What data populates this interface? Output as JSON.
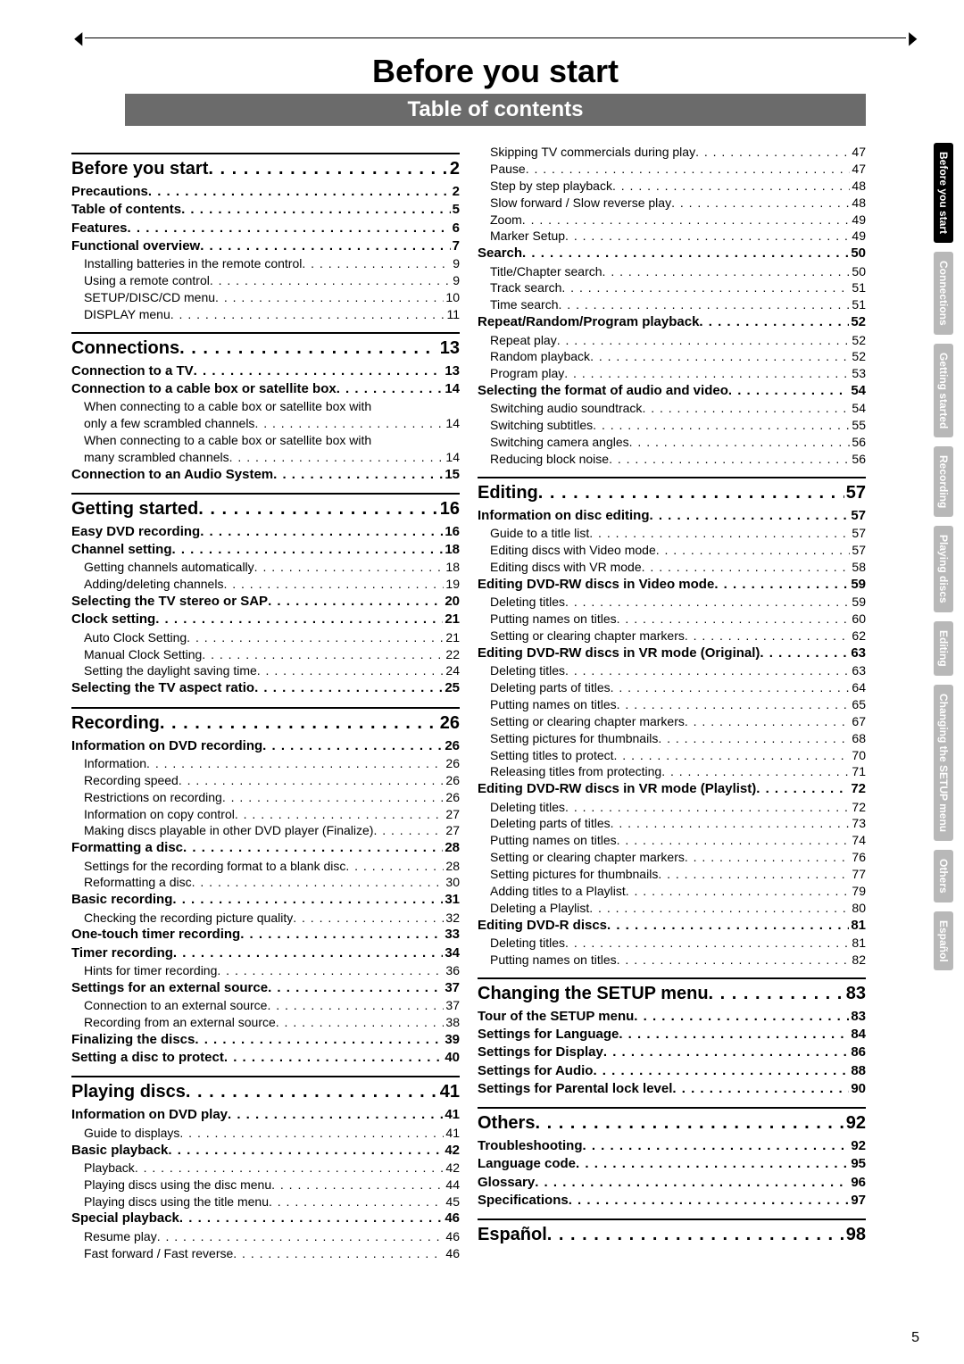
{
  "header": {
    "title": "Before you start",
    "subtitle": "Table of contents"
  },
  "page_number": "5",
  "tabs": [
    {
      "label": "Before you start",
      "active": true
    },
    {
      "label": "Connections",
      "active": false
    },
    {
      "label": "Getting started",
      "active": false
    },
    {
      "label": "Recording",
      "active": false
    },
    {
      "label": "Playing discs",
      "active": false
    },
    {
      "label": "Editing",
      "active": false
    },
    {
      "label": "Changing the SETUP menu",
      "active": false
    },
    {
      "label": "Others",
      "active": false
    },
    {
      "label": "Español",
      "active": false
    }
  ],
  "left": [
    {
      "type": "rule"
    },
    {
      "lvl": 0,
      "t": "Before you start",
      "p": "2"
    },
    {
      "lvl": 1,
      "t": "Precautions",
      "p": "2"
    },
    {
      "lvl": 1,
      "t": "Table of contents",
      "p": "5"
    },
    {
      "lvl": 1,
      "t": "Features",
      "p": "6"
    },
    {
      "lvl": 1,
      "t": "Functional overview",
      "p": "7"
    },
    {
      "lvl": 2,
      "t": "Installing batteries in the remote control",
      "p": "9"
    },
    {
      "lvl": 2,
      "t": "Using a remote control",
      "p": "9"
    },
    {
      "lvl": 2,
      "t": "SETUP/DISC/CD menu",
      "p": "10"
    },
    {
      "lvl": 2,
      "t": "DISPLAY menu",
      "p": "11"
    },
    {
      "type": "rule"
    },
    {
      "lvl": 0,
      "t": "Connections",
      "p": "13"
    },
    {
      "lvl": 1,
      "t": "Connection to a TV",
      "p": "13"
    },
    {
      "lvl": 1,
      "t": "Connection to a cable box or satellite box",
      "p": "14"
    },
    {
      "lvl": 2,
      "t": "When connecting to a cable box or satellite box with",
      "wrap": true
    },
    {
      "lvl": "wrap",
      "t": "only a few scrambled channels",
      "p": "14"
    },
    {
      "lvl": 2,
      "t": "When connecting to a cable box or satellite box with",
      "wrap": true
    },
    {
      "lvl": "wrap",
      "t": "many scrambled channels",
      "p": "14"
    },
    {
      "lvl": 1,
      "t": "Connection to an Audio System",
      "p": "15"
    },
    {
      "type": "rule"
    },
    {
      "lvl": 0,
      "t": "Getting started",
      "p": "16"
    },
    {
      "lvl": 1,
      "t": "Easy DVD recording",
      "p": "16"
    },
    {
      "lvl": 1,
      "t": "Channel setting",
      "p": "18"
    },
    {
      "lvl": 2,
      "t": "Getting channels automatically",
      "p": "18"
    },
    {
      "lvl": 2,
      "t": "Adding/deleting channels",
      "p": "19"
    },
    {
      "lvl": 1,
      "t": "Selecting the TV stereo or SAP",
      "p": "20"
    },
    {
      "lvl": 1,
      "t": "Clock setting",
      "p": "21"
    },
    {
      "lvl": 2,
      "t": "Auto Clock Setting",
      "p": "21"
    },
    {
      "lvl": 2,
      "t": "Manual Clock Setting",
      "p": "22"
    },
    {
      "lvl": 2,
      "t": "Setting the daylight saving time",
      "p": "24"
    },
    {
      "lvl": 1,
      "t": "Selecting the TV aspect ratio",
      "p": "25"
    },
    {
      "type": "rule"
    },
    {
      "lvl": 0,
      "t": "Recording",
      "p": "26"
    },
    {
      "lvl": 1,
      "t": "Information on DVD recording",
      "p": "26"
    },
    {
      "lvl": 2,
      "t": "Information",
      "p": "26"
    },
    {
      "lvl": 2,
      "t": "Recording speed",
      "p": "26"
    },
    {
      "lvl": 2,
      "t": "Restrictions on recording",
      "p": "26"
    },
    {
      "lvl": 2,
      "t": "Information on copy control",
      "p": "27"
    },
    {
      "lvl": 2,
      "t": "Making discs playable in other DVD player (Finalize)",
      "p": "27"
    },
    {
      "lvl": 1,
      "t": "Formatting a disc",
      "p": "28"
    },
    {
      "lvl": 2,
      "t": "Settings for the recording format to a blank disc",
      "p": "28"
    },
    {
      "lvl": 2,
      "t": "Reformatting a disc",
      "p": "30"
    },
    {
      "lvl": 1,
      "t": "Basic recording",
      "p": "31"
    },
    {
      "lvl": 2,
      "t": "Checking the recording picture quality",
      "p": "32"
    },
    {
      "lvl": 1,
      "t": "One-touch timer recording",
      "p": "33"
    },
    {
      "lvl": 1,
      "t": "Timer recording",
      "p": "34"
    },
    {
      "lvl": 2,
      "t": "Hints for timer recording",
      "p": "36"
    },
    {
      "lvl": 1,
      "t": "Settings for an external source",
      "p": "37"
    },
    {
      "lvl": 2,
      "t": "Connection to an external source",
      "p": "37"
    },
    {
      "lvl": 2,
      "t": "Recording from an external source",
      "p": "38"
    },
    {
      "lvl": 1,
      "t": "Finalizing the discs",
      "p": "39"
    },
    {
      "lvl": 1,
      "t": "Setting a disc to protect",
      "p": "40"
    },
    {
      "type": "rule"
    },
    {
      "lvl": 0,
      "t": "Playing discs",
      "p": "41"
    },
    {
      "lvl": 1,
      "t": "Information on DVD play",
      "p": "41"
    },
    {
      "lvl": 2,
      "t": "Guide to displays",
      "p": "41"
    },
    {
      "lvl": 1,
      "t": "Basic playback",
      "p": "42"
    },
    {
      "lvl": 2,
      "t": "Playback",
      "p": "42"
    },
    {
      "lvl": 2,
      "t": "Playing discs using the disc menu",
      "p": "44"
    },
    {
      "lvl": 2,
      "t": "Playing discs using the title menu",
      "p": "45"
    },
    {
      "lvl": 1,
      "t": "Special playback",
      "p": "46"
    },
    {
      "lvl": 2,
      "t": "Resume play",
      "p": "46"
    },
    {
      "lvl": 2,
      "t": "Fast forward / Fast reverse",
      "p": "46"
    }
  ],
  "right": [
    {
      "lvl": 2,
      "t": "Skipping TV commercials during play",
      "p": "47"
    },
    {
      "lvl": 2,
      "t": "Pause",
      "p": "47"
    },
    {
      "lvl": 2,
      "t": "Step by step playback",
      "p": "48"
    },
    {
      "lvl": 2,
      "t": "Slow forward / Slow reverse play",
      "p": "48"
    },
    {
      "lvl": 2,
      "t": "Zoom",
      "p": "49"
    },
    {
      "lvl": 2,
      "t": "Marker Setup",
      "p": "49"
    },
    {
      "lvl": 1,
      "t": "Search",
      "p": "50"
    },
    {
      "lvl": 2,
      "t": "Title/Chapter search",
      "p": "50"
    },
    {
      "lvl": 2,
      "t": "Track search",
      "p": "51"
    },
    {
      "lvl": 2,
      "t": "Time search",
      "p": "51"
    },
    {
      "lvl": 1,
      "t": "Repeat/Random/Program playback",
      "p": "52"
    },
    {
      "lvl": 2,
      "t": "Repeat play",
      "p": "52"
    },
    {
      "lvl": 2,
      "t": "Random playback",
      "p": "52"
    },
    {
      "lvl": 2,
      "t": "Program play",
      "p": "53"
    },
    {
      "lvl": 1,
      "t": "Selecting the format of audio and video",
      "p": "54"
    },
    {
      "lvl": 2,
      "t": "Switching audio soundtrack",
      "p": "54"
    },
    {
      "lvl": 2,
      "t": "Switching subtitles",
      "p": "55"
    },
    {
      "lvl": 2,
      "t": "Switching camera angles",
      "p": "56"
    },
    {
      "lvl": 2,
      "t": "Reducing block noise",
      "p": "56"
    },
    {
      "type": "rule"
    },
    {
      "lvl": 0,
      "t": "Editing",
      "p": "57"
    },
    {
      "lvl": 1,
      "t": "Information on disc editing",
      "p": "57"
    },
    {
      "lvl": 2,
      "t": "Guide to a title list",
      "p": "57"
    },
    {
      "lvl": 2,
      "t": "Editing discs with Video mode",
      "p": "57"
    },
    {
      "lvl": 2,
      "t": "Editing discs with VR mode",
      "p": "58"
    },
    {
      "lvl": 1,
      "t": "Editing DVD-RW discs in Video mode",
      "p": "59"
    },
    {
      "lvl": 2,
      "t": "Deleting titles",
      "p": "59"
    },
    {
      "lvl": 2,
      "t": "Putting names on titles",
      "p": "60"
    },
    {
      "lvl": 2,
      "t": "Setting or clearing chapter markers",
      "p": "62"
    },
    {
      "lvl": 1,
      "t": "Editing DVD-RW discs in VR mode (Original)",
      "p": "63"
    },
    {
      "lvl": 2,
      "t": "Deleting titles",
      "p": "63"
    },
    {
      "lvl": 2,
      "t": "Deleting parts of titles",
      "p": "64"
    },
    {
      "lvl": 2,
      "t": "Putting names on titles",
      "p": "65"
    },
    {
      "lvl": 2,
      "t": "Setting or clearing chapter markers",
      "p": "67"
    },
    {
      "lvl": 2,
      "t": "Setting pictures for thumbnails",
      "p": "68"
    },
    {
      "lvl": 2,
      "t": "Setting titles to protect",
      "p": "70"
    },
    {
      "lvl": 2,
      "t": "Releasing titles from protecting",
      "p": "71"
    },
    {
      "lvl": 1,
      "t": "Editing DVD-RW discs in VR mode (Playlist)",
      "p": "72"
    },
    {
      "lvl": 2,
      "t": "Deleting titles",
      "p": "72"
    },
    {
      "lvl": 2,
      "t": "Deleting parts of titles",
      "p": "73"
    },
    {
      "lvl": 2,
      "t": "Putting names on titles",
      "p": "74"
    },
    {
      "lvl": 2,
      "t": "Setting or clearing chapter markers",
      "p": "76"
    },
    {
      "lvl": 2,
      "t": "Setting pictures for thumbnails",
      "p": "77"
    },
    {
      "lvl": 2,
      "t": "Adding titles to a Playlist",
      "p": "79"
    },
    {
      "lvl": 2,
      "t": "Deleting a Playlist",
      "p": "80"
    },
    {
      "lvl": 1,
      "t": "Editing DVD-R discs",
      "p": "81"
    },
    {
      "lvl": 2,
      "t": "Deleting titles",
      "p": "81"
    },
    {
      "lvl": 2,
      "t": "Putting names on titles",
      "p": "82"
    },
    {
      "type": "rule"
    },
    {
      "lvl": 0,
      "t": "Changing the SETUP menu",
      "p": "83"
    },
    {
      "lvl": 1,
      "t": "Tour of the SETUP menu",
      "p": "83"
    },
    {
      "lvl": 1,
      "t": "Settings for Language",
      "p": "84"
    },
    {
      "lvl": 1,
      "t": "Settings for Display",
      "p": "86"
    },
    {
      "lvl": 1,
      "t": "Settings for Audio",
      "p": "88"
    },
    {
      "lvl": 1,
      "t": "Settings for Parental lock level",
      "p": "90"
    },
    {
      "type": "rule"
    },
    {
      "lvl": 0,
      "t": "Others",
      "p": "92"
    },
    {
      "lvl": 1,
      "t": "Troubleshooting",
      "p": "92"
    },
    {
      "lvl": 1,
      "t": "Language code",
      "p": "95"
    },
    {
      "lvl": 1,
      "t": "Glossary",
      "p": "96"
    },
    {
      "lvl": 1,
      "t": "Specifications",
      "p": "97"
    },
    {
      "type": "rule"
    },
    {
      "lvl": 0,
      "t": "Español",
      "p": "98"
    }
  ]
}
